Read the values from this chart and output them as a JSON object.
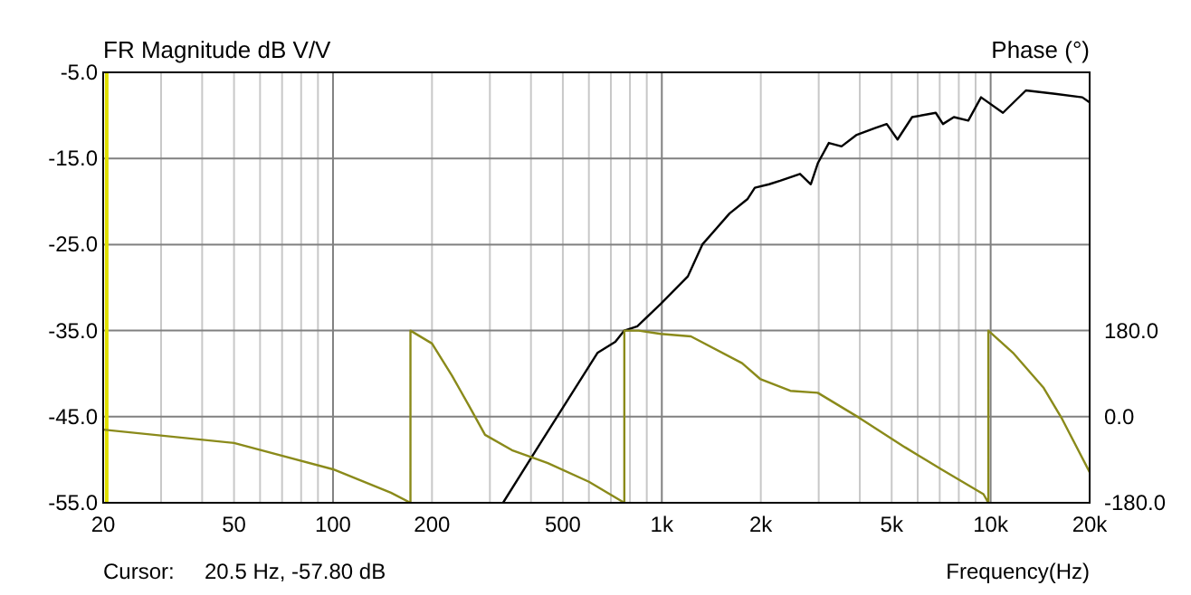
{
  "chart_data": {
    "type": "line",
    "xlabel": "Frequency(Hz)",
    "ylabel": "FR Magnitude dB V/V",
    "y2label": "Phase (°)",
    "log": "x",
    "grid": true,
    "xlim": [
      20,
      20000
    ],
    "xticks": [
      20,
      50,
      100,
      200,
      500,
      {
        "value": 1000,
        "label": "1k"
      },
      {
        "value": 2000,
        "label": "2k"
      },
      {
        "value": 5000,
        "label": "5k"
      },
      {
        "value": 10000,
        "label": "10k"
      },
      {
        "value": 20000,
        "label": "20k"
      }
    ],
    "ylim": [
      -55,
      -5
    ],
    "yticks": [
      {
        "value": -55,
        "label": "-55.0"
      },
      {
        "value": -45,
        "label": "-45.0"
      },
      {
        "value": -35,
        "label": "-35.0"
      },
      {
        "value": -25,
        "label": "-25.0"
      },
      {
        "value": -15,
        "label": "-15.0"
      },
      {
        "value": -5,
        "label": "-5.0"
      }
    ],
    "y2lim": [
      -180,
      720
    ],
    "y2ticks": [
      {
        "value": -180,
        "label": "-180.0"
      },
      {
        "value": 0,
        "label": "0.0"
      },
      {
        "value": 180,
        "label": "180.0"
      }
    ],
    "series": [
      {
        "color": "#000000",
        "x": [
          329,
          435,
          637,
          722,
          769,
          842,
          992,
          1200,
          1328,
          1606,
          1824,
          1918,
          2120,
          2290,
          2632,
          2838,
          2986,
          3220,
          3520,
          3900,
          4430,
          4830,
          5210,
          5770,
          6810,
          7160,
          7730,
          8550,
          9350,
          10900,
          12800,
          15700,
          19000,
          20000
        ],
        "values": [
          -55,
          -47.6,
          -37.6,
          -36.3,
          -35,
          -34.5,
          -31.9,
          -28.7,
          -25,
          -21.4,
          -19.7,
          -18.4,
          -18,
          -17.6,
          -16.8,
          -18,
          -15.5,
          -13.2,
          -13.6,
          -12.3,
          -11.5,
          -11,
          -12.8,
          -10.2,
          -9.7,
          -11,
          -10.2,
          -10.6,
          -7.9,
          -9.7,
          -7.1,
          -7.5,
          -7.9,
          -8.5
        ]
      },
      {
        "color": "#8a8a1a",
        "axis": "y2",
        "x": [
          20,
          50,
          100,
          150,
          172,
          172,
          200,
          230,
          260,
          290,
          350,
          450,
          600,
          769,
          769,
          850,
          992,
          1226,
          1754,
          1990,
          2460,
          2980,
          4000,
          5490,
          7080,
          9510,
          9840,
          9840,
          11750,
          14500,
          16500,
          20000
        ],
        "values": [
          -27,
          -55,
          -110,
          -159,
          -180,
          180,
          153,
          86,
          21,
          -38,
          -70,
          -97,
          -136,
          -180,
          180,
          180,
          173,
          168,
          112,
          79,
          54,
          50,
          -3,
          -64,
          -110,
          -162,
          -180,
          180,
          132,
          60,
          -5,
          -116
        ]
      }
    ],
    "ref_lines": [
      {
        "axis": "x",
        "value": 20.5,
        "color": "#e0e000"
      }
    ],
    "annotations": [
      "Cursor:     20.5 Hz, -57.80 dB"
    ]
  }
}
